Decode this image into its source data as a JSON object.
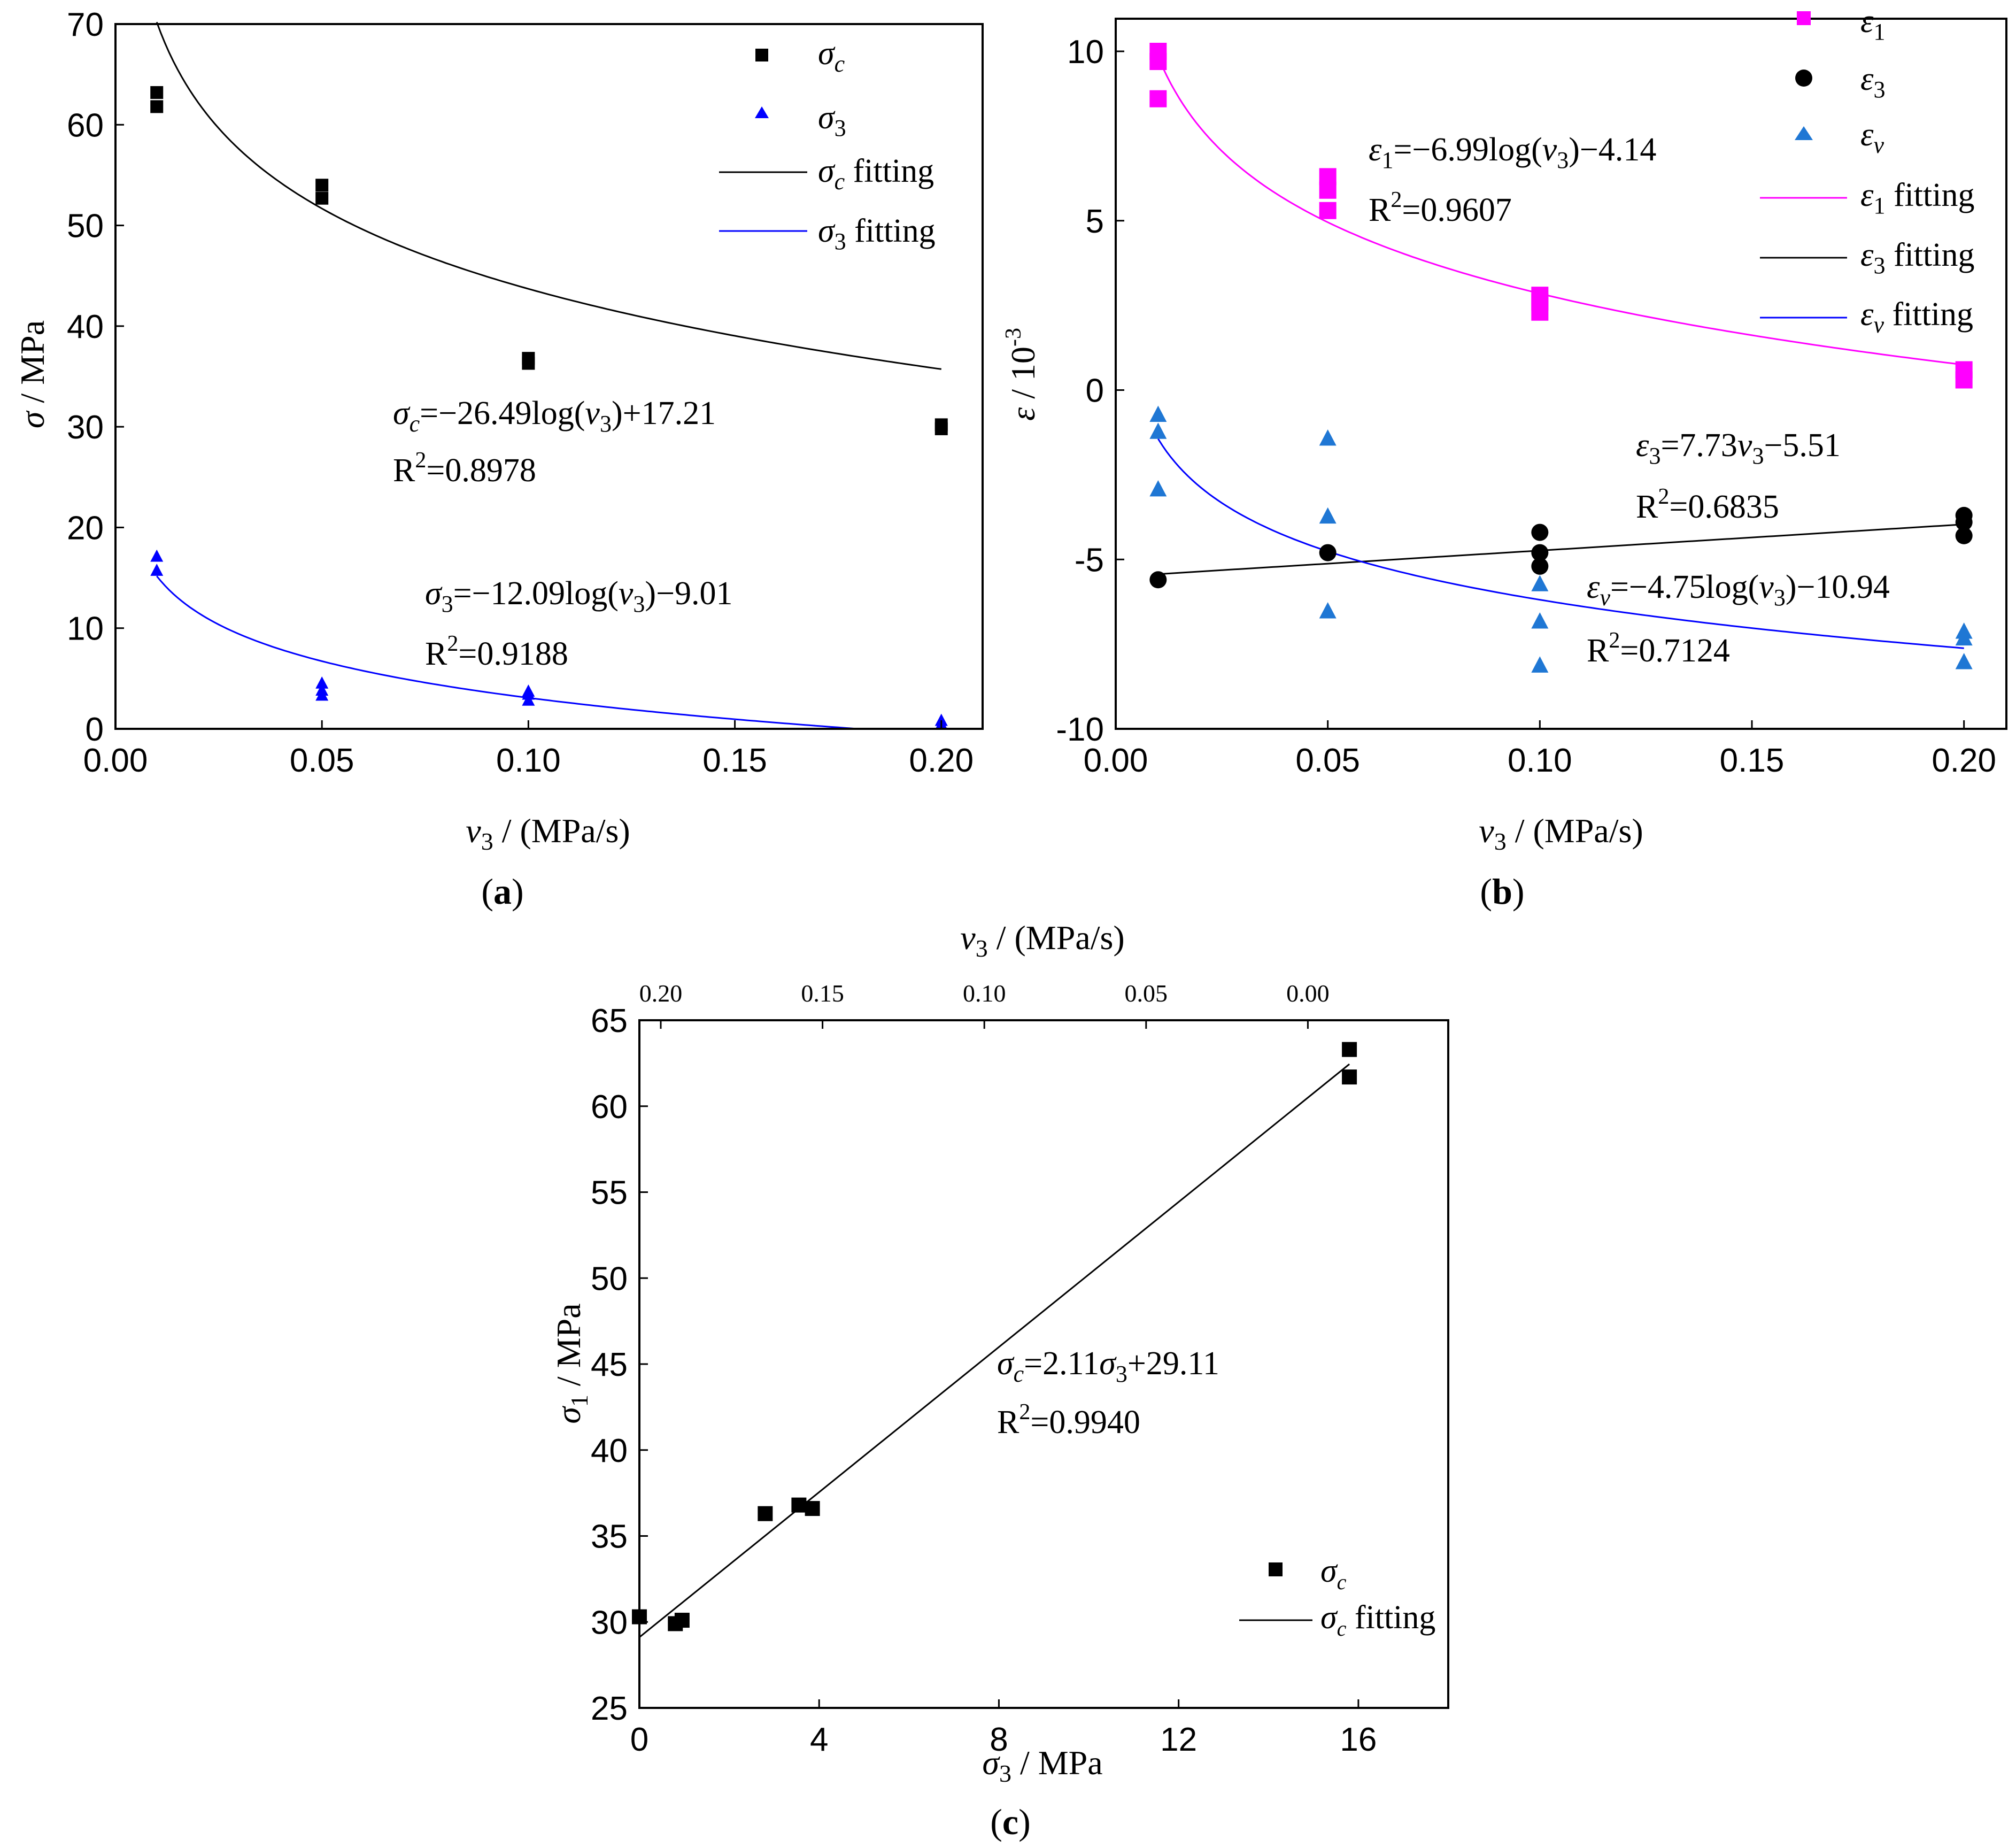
{
  "chart_data": [
    {
      "id": "a",
      "type": "scatter",
      "panel_label": "(a)",
      "xlabel": "v3 / (MPa/s)",
      "ylabel": "σ / MPa",
      "xlim": [
        0,
        0.21
      ],
      "ylim": [
        0,
        70
      ],
      "xticks": [
        "0.00",
        "0.05",
        "0.10",
        "0.15",
        "0.20"
      ],
      "yticks": [
        "0",
        "10",
        "20",
        "30",
        "40",
        "50",
        "60",
        "70"
      ],
      "series": [
        {
          "name": "σc",
          "marker": "square",
          "color": "#000000",
          "x": [
            0.01,
            0.01,
            0.05,
            0.05,
            0.1,
            0.1,
            0.2,
            0.2
          ],
          "y": [
            63.2,
            61.8,
            54.0,
            52.7,
            36.8,
            36.3,
            30.2,
            29.8
          ]
        },
        {
          "name": "σ3",
          "marker": "triangle",
          "color": "#0000ff",
          "x": [
            0.01,
            0.01,
            0.05,
            0.05,
            0.05,
            0.1,
            0.1,
            0.1,
            0.2,
            0.2
          ],
          "y": [
            17.2,
            15.8,
            4.6,
            3.9,
            3.4,
            3.8,
            3.5,
            2.9,
            0.9,
            0.5
          ]
        }
      ],
      "fits": [
        {
          "name": "σc fitting",
          "color": "#000000",
          "a": -26.49,
          "b": 17.21,
          "equation": "σc=−26.49log(v3)+17.21",
          "r2": "R2=0.8978"
        },
        {
          "name": "σ3 fitting",
          "color": "#0000ff",
          "a": -12.09,
          "b": -9.01,
          "equation": "σ3=−12.09log(v3)−9.01",
          "r2": "R2=0.9188"
        }
      ]
    },
    {
      "id": "b",
      "type": "scatter",
      "panel_label": "(b)",
      "xlabel": "v3 / (MPa/s)",
      "ylabel": "ε / 10-3",
      "xlim": [
        0,
        0.21
      ],
      "ylim": [
        -10,
        11
      ],
      "xticks": [
        "0.00",
        "0.05",
        "0.10",
        "0.15",
        "0.20"
      ],
      "yticks": [
        "-10",
        "-5",
        "0",
        "5",
        "10"
      ],
      "series": [
        {
          "name": "ε1",
          "marker": "square",
          "color": "#ff00ff",
          "x": [
            0.01,
            0.01,
            0.01,
            0.05,
            0.05,
            0.05,
            0.1,
            0.1,
            0.1,
            0.2,
            0.2
          ],
          "y": [
            10.0,
            9.7,
            8.6,
            6.3,
            5.9,
            5.3,
            2.8,
            2.6,
            2.3,
            0.6,
            0.3
          ]
        },
        {
          "name": "ε3",
          "marker": "circle",
          "color": "#000000",
          "x": [
            0.01,
            0.05,
            0.1,
            0.1,
            0.1,
            0.2,
            0.2,
            0.2
          ],
          "y": [
            -5.6,
            -4.8,
            -4.2,
            -4.8,
            -5.2,
            -3.7,
            -3.9,
            -4.3
          ]
        },
        {
          "name": "εv",
          "marker": "triangle",
          "color": "#1f77d4",
          "x": [
            0.01,
            0.01,
            0.01,
            0.05,
            0.05,
            0.05,
            0.1,
            0.1,
            0.1,
            0.2,
            0.2,
            0.2
          ],
          "y": [
            -0.7,
            -1.2,
            -2.9,
            -1.4,
            -3.7,
            -6.5,
            -5.7,
            -6.8,
            -8.1,
            -7.1,
            -7.3,
            -8.0
          ]
        }
      ],
      "fits": [
        {
          "name": "ε1 fitting",
          "color": "#ff00ff",
          "kind": "log",
          "a": -6.99,
          "b": -4.14,
          "equation": "ε1=−6.99log(v3)−4.14",
          "r2": "R2=0.9607"
        },
        {
          "name": "ε3 fitting",
          "color": "#000000",
          "kind": "linear",
          "a": 7.73,
          "b": -5.51,
          "equation": "ε3=7.73v3−5.51",
          "r2": "R2=0.6835"
        },
        {
          "name": "εv fitting",
          "color": "#0000ff",
          "kind": "log",
          "a": -4.75,
          "b": -10.94,
          "equation": "εv=−4.75log(v3)−10.94",
          "r2": "R2=0.7124"
        }
      ]
    },
    {
      "id": "c",
      "type": "scatter",
      "panel_label": "(c)",
      "xlabel": "σ3 / MPa",
      "ylabel": "σ1 / MPa",
      "top_xlabel": "v3 / (MPa/s)",
      "xlim": [
        0,
        18
      ],
      "ylim": [
        25,
        65
      ],
      "xticks": [
        "0",
        "4",
        "8",
        "12",
        "16"
      ],
      "yticks": [
        "25",
        "30",
        "35",
        "40",
        "45",
        "50",
        "55",
        "60",
        "65"
      ],
      "top_xticks": [
        "0.20",
        "0.15",
        "0.10",
        "0.05",
        "0.00"
      ],
      "series": [
        {
          "name": "σc",
          "marker": "square",
          "color": "#000000",
          "x": [
            0.0,
            0.8,
            0.95,
            2.8,
            3.55,
            3.85,
            15.8,
            15.8
          ],
          "y": [
            30.3,
            29.9,
            30.1,
            36.3,
            36.8,
            36.6,
            63.3,
            61.7
          ]
        }
      ],
      "fits": [
        {
          "name": "σc fitting",
          "color": "#000000",
          "kind": "linear",
          "a": 2.11,
          "b": 29.11,
          "equation": "σc=2.11σ3+29.11",
          "r2": "R2=0.9940"
        }
      ]
    }
  ]
}
